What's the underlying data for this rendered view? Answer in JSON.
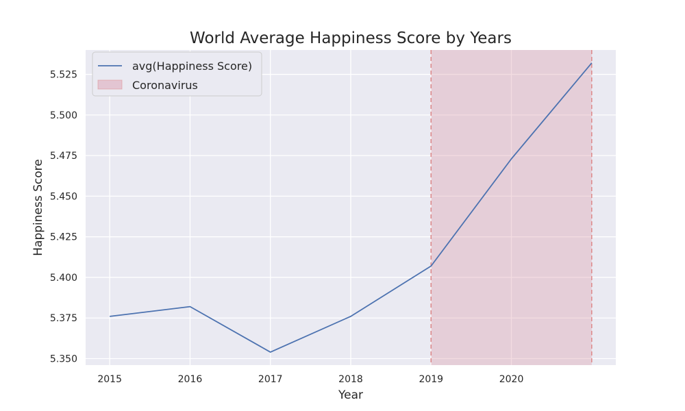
{
  "chart_data": {
    "type": "line",
    "title": "World Average Happiness Score by Years",
    "xlabel": "Year",
    "ylabel": "Happiness Score",
    "x_ticks": [
      2015,
      2016,
      2017,
      2018,
      2019,
      2020
    ],
    "y_ticks": [
      5.35,
      5.375,
      5.4,
      5.425,
      5.45,
      5.475,
      5.5,
      5.525
    ],
    "y_tick_labels": [
      "5.350",
      "5.375",
      "5.400",
      "5.425",
      "5.450",
      "5.475",
      "5.500",
      "5.525"
    ],
    "xlim": [
      2014.7,
      2021.3
    ],
    "ylim": [
      5.346,
      5.54
    ],
    "grid": true,
    "legend_position": "top-left",
    "series": [
      {
        "name": "avg(Happiness Score)",
        "color": "#4c72b0",
        "x": [
          2015,
          2016,
          2017,
          2018,
          2019,
          2020,
          2021
        ],
        "y": [
          5.376,
          5.382,
          5.354,
          5.376,
          5.407,
          5.473,
          5.532
        ]
      }
    ],
    "shaded_region": {
      "name": "Coronavirus",
      "x_start": 2019,
      "x_end": 2021,
      "fill_color": "#dc9aaa",
      "edge_color": "#dd8888"
    },
    "background_color": "#eaeaf2"
  }
}
